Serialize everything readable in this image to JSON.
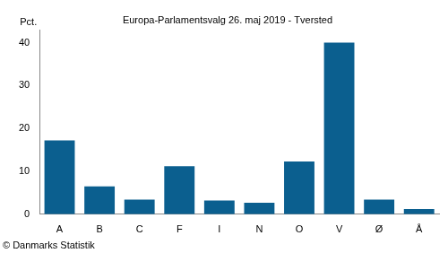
{
  "chart_data": {
    "type": "bar",
    "title": "Europa-Parlamentsvalg 26. maj 2019 - Tversted",
    "ylabel": "Pct.",
    "source": "© Danmarks Statistik",
    "categories": [
      "A",
      "B",
      "C",
      "F",
      "I",
      "N",
      "O",
      "V",
      "Ø",
      "Å"
    ],
    "values": [
      17.2,
      6.5,
      3.4,
      11.2,
      3.2,
      2.7,
      12.3,
      40.0,
      3.4,
      1.2
    ],
    "color": "#0b5f8f",
    "ylim": [
      0,
      43
    ],
    "yticks": [
      0,
      10,
      20,
      30,
      40
    ],
    "grid": false
  }
}
